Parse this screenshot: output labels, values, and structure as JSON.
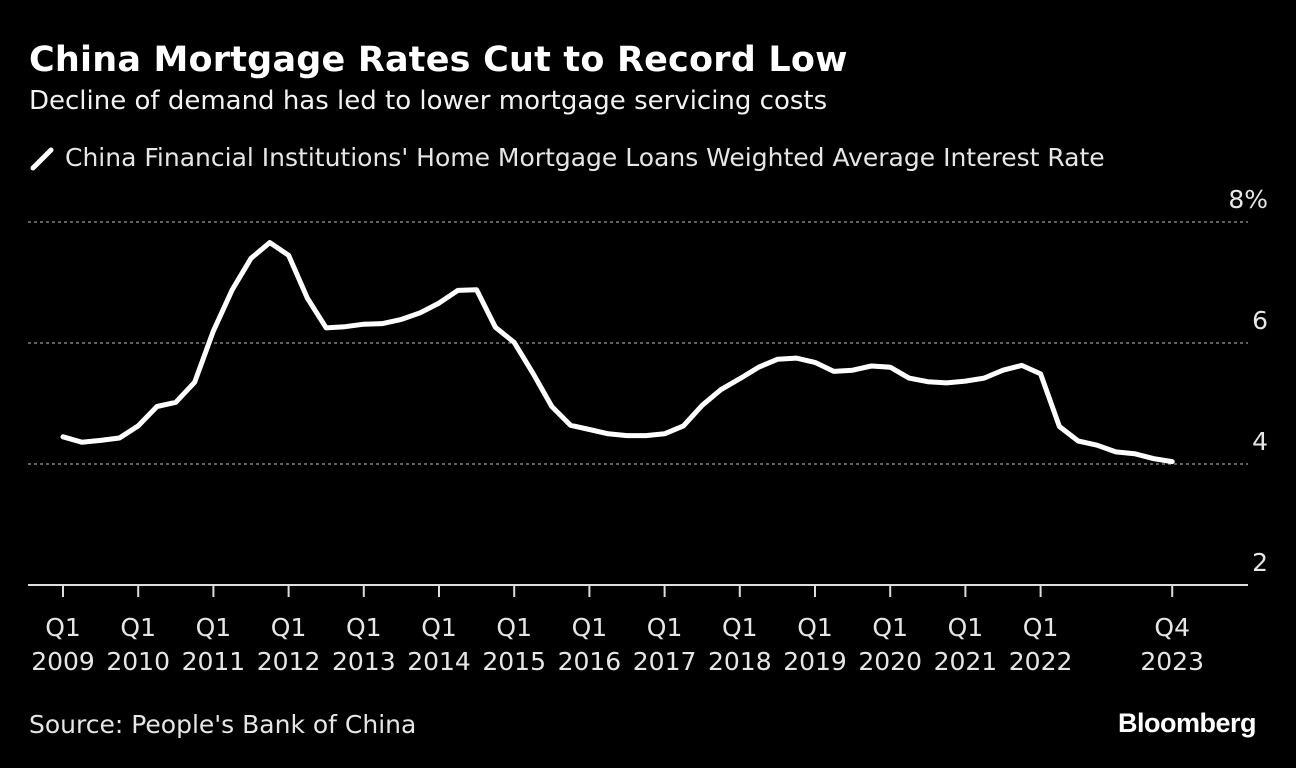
{
  "header": {
    "title": "China Mortgage Rates Cut to Record Low",
    "subtitle": "Decline of demand has led to lower mortgage servicing costs"
  },
  "footer": {
    "source": "Source: People's Bank of China",
    "brand": "Bloomberg"
  },
  "colors": {
    "background": "#000000",
    "line": "#ffffff",
    "grid": "#9a9a9a",
    "axis": "#dddddd"
  },
  "chart_data": {
    "type": "line",
    "title": "China Mortgage Rates Cut to Record Low",
    "xlabel": "",
    "ylabel": "",
    "ylim": [
      2,
      8
    ],
    "y_ticks": [
      {
        "value": 8,
        "label": "8%"
      },
      {
        "value": 6,
        "label": "6"
      },
      {
        "value": 4,
        "label": "4"
      },
      {
        "value": 2,
        "label": "2"
      }
    ],
    "grid": true,
    "legend_position": "top-left",
    "x_ticks": [
      {
        "q": "Q1",
        "year": "2009",
        "index": 0
      },
      {
        "q": "Q1",
        "year": "2010",
        "index": 4
      },
      {
        "q": "Q1",
        "year": "2011",
        "index": 8
      },
      {
        "q": "Q1",
        "year": "2012",
        "index": 12
      },
      {
        "q": "Q1",
        "year": "2013",
        "index": 16
      },
      {
        "q": "Q1",
        "year": "2014",
        "index": 20
      },
      {
        "q": "Q1",
        "year": "2015",
        "index": 24
      },
      {
        "q": "Q1",
        "year": "2016",
        "index": 28
      },
      {
        "q": "Q1",
        "year": "2017",
        "index": 32
      },
      {
        "q": "Q1",
        "year": "2018",
        "index": 36
      },
      {
        "q": "Q1",
        "year": "2019",
        "index": 40
      },
      {
        "q": "Q1",
        "year": "2020",
        "index": 44
      },
      {
        "q": "Q1",
        "year": "2021",
        "index": 48
      },
      {
        "q": "Q1",
        "year": "2022",
        "index": 52
      },
      {
        "q": "Q4",
        "year": "2023",
        "index": 59
      }
    ],
    "series": [
      {
        "name": "China Financial Institutions' Home Mortgage Loans Weighted Average Interest Rate",
        "x": [
          "2009Q1",
          "2009Q2",
          "2009Q3",
          "2009Q4",
          "2010Q1",
          "2010Q2",
          "2010Q3",
          "2010Q4",
          "2011Q1",
          "2011Q2",
          "2011Q3",
          "2011Q4",
          "2012Q1",
          "2012Q2",
          "2012Q3",
          "2012Q4",
          "2013Q1",
          "2013Q2",
          "2013Q3",
          "2013Q4",
          "2014Q1",
          "2014Q2",
          "2014Q3",
          "2014Q4",
          "2015Q1",
          "2015Q2",
          "2015Q3",
          "2015Q4",
          "2016Q1",
          "2016Q2",
          "2016Q3",
          "2016Q4",
          "2017Q1",
          "2017Q2",
          "2017Q3",
          "2017Q4",
          "2018Q1",
          "2018Q2",
          "2018Q3",
          "2018Q4",
          "2019Q1",
          "2019Q2",
          "2019Q3",
          "2019Q4",
          "2020Q1",
          "2020Q2",
          "2020Q3",
          "2020Q4",
          "2021Q1",
          "2021Q2",
          "2021Q3",
          "2021Q4",
          "2022Q1",
          "2022Q2",
          "2022Q3",
          "2022Q4",
          "2023Q1",
          "2023Q2",
          "2023Q3",
          "2023Q4"
        ],
        "values": [
          4.45,
          4.36,
          4.39,
          4.43,
          4.63,
          4.95,
          5.02,
          5.35,
          6.2,
          6.88,
          7.4,
          7.66,
          7.45,
          6.74,
          6.25,
          6.27,
          6.31,
          6.32,
          6.39,
          6.5,
          6.66,
          6.87,
          6.88,
          6.26,
          6.01,
          5.5,
          4.95,
          4.64,
          4.57,
          4.5,
          4.47,
          4.47,
          4.5,
          4.63,
          4.97,
          5.23,
          5.41,
          5.6,
          5.73,
          5.75,
          5.68,
          5.53,
          5.55,
          5.62,
          5.6,
          5.42,
          5.36,
          5.34,
          5.37,
          5.42,
          5.55,
          5.63,
          5.49,
          4.62,
          4.38,
          4.31,
          4.2,
          4.17,
          4.09,
          4.04
        ]
      }
    ]
  }
}
